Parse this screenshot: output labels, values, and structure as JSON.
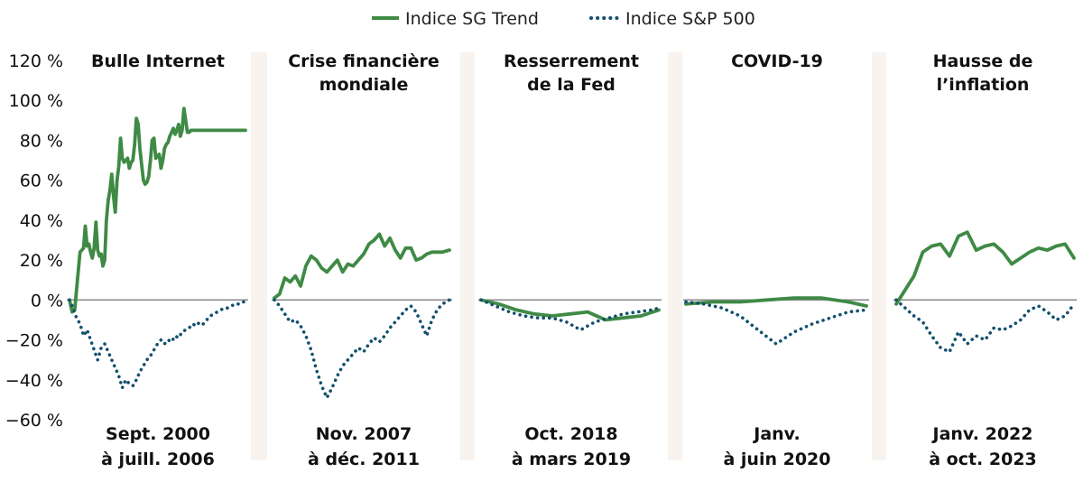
{
  "chart_data": {
    "type": "line",
    "yaxis": {
      "ylim": [
        -60,
        120
      ],
      "ticks": [
        120,
        100,
        80,
        60,
        40,
        20,
        0,
        -20,
        -40,
        -60
      ],
      "tick_labels": [
        "120 %",
        "100 %",
        "80 %",
        "60 %",
        "40 %",
        "20 %",
        "0 %",
        "−20 %",
        "−40 %",
        "−60 %"
      ]
    },
    "legend": {
      "placement": "top-center",
      "entries": [
        {
          "label": "Indice SG Trend",
          "color": "#3f8a45",
          "style": "solid"
        },
        {
          "label": "Indice S&P 500",
          "color": "#13506e",
          "style": "dotted"
        }
      ]
    },
    "panels": [
      {
        "title_lines": [
          "Bulle Internet"
        ],
        "period_lines": [
          "Sept. 2000",
          "à juill. 2006"
        ],
        "series": [
          {
            "name": "Indice SG Trend",
            "x": [
              0,
              1.5,
              3,
              4.5,
              6,
              7,
              8,
              9,
              10,
              11,
              12,
              13,
              14,
              15,
              16,
              17,
              18,
              19,
              20,
              21,
              22,
              23,
              24,
              25,
              26,
              27,
              28,
              29,
              30,
              31,
              32,
              33,
              34,
              35,
              36,
              37,
              38,
              39,
              40,
              41,
              42,
              43,
              44,
              45,
              46,
              47,
              48,
              49,
              50,
              51,
              52,
              53,
              54,
              55,
              56,
              57,
              58,
              59,
              60,
              61,
              62,
              63,
              64,
              65,
              66,
              67,
              68,
              69,
              70,
              71,
              72,
              73,
              74,
              75,
              76,
              77,
              78,
              79,
              80,
              81,
              82,
              83,
              84,
              85,
              86,
              87,
              88,
              89,
              90,
              91,
              92,
              93,
              94,
              95,
              96,
              97,
              98,
              99,
              100
            ],
            "values": [
              0,
              -6,
              -5,
              10,
              24,
              25,
              26,
              37,
              27,
              28,
              24,
              21,
              26,
              39,
              25,
              22,
              23,
              17,
              20,
              40,
              50,
              55,
              63,
              52,
              44,
              60,
              67,
              81,
              71,
              69,
              70,
              71,
              66,
              69,
              70,
              78,
              91,
              88,
              76,
              68,
              60,
              58,
              59,
              62,
              70,
              80,
              81,
              71,
              72,
              73,
              66,
              70,
              76,
              78,
              79,
              82,
              84,
              86,
              83,
              85,
              88,
              82,
              85,
              96,
              90,
              84,
              84,
              85,
              85,
              85,
              85,
              85,
              85,
              85,
              85,
              85,
              85,
              85,
              85,
              85,
              85,
              85,
              85,
              85,
              85,
              85,
              85,
              85,
              85,
              85,
              85,
              85,
              85,
              85,
              85,
              85,
              85,
              85,
              85
            ]
          },
          {
            "name": "Indice S&P 500",
            "x": [
              0,
              2,
              4,
              6,
              8,
              10,
              12,
              14,
              16,
              18,
              20,
              22,
              24,
              26,
              28,
              30,
              32,
              34,
              36,
              38,
              40,
              42,
              44,
              46,
              48,
              50,
              52,
              54,
              56,
              58,
              60,
              62,
              64,
              66,
              68,
              70,
              72,
              74,
              76,
              78,
              80,
              82,
              84,
              86,
              88,
              90,
              92,
              94,
              96,
              98,
              100
            ],
            "values": [
              0,
              -4,
              -9,
              -12,
              -18,
              -15,
              -20,
              -25,
              -30,
              -24,
              -22,
              -26,
              -30,
              -34,
              -38,
              -44,
              -40,
              -42,
              -43,
              -40,
              -36,
              -33,
              -30,
              -28,
              -25,
              -22,
              -20,
              -22,
              -20,
              -21,
              -18,
              -19,
              -16,
              -15,
              -14,
              -12,
              -13,
              -11,
              -12,
              -10,
              -8,
              -7,
              -6,
              -5,
              -4,
              -4,
              -3,
              -2,
              -2,
              -1,
              -1
            ]
          }
        ]
      },
      {
        "title_lines": [
          "Crise financière",
          "mondiale"
        ],
        "period_lines": [
          "Nov. 2007",
          "à déc. 2011"
        ],
        "series": [
          {
            "name": "Indice SG Trend",
            "x": [
              0,
              3,
              6,
              9,
              12,
              15,
              18,
              21,
              24,
              27,
              30,
              33,
              36,
              39,
              42,
              45,
              48,
              51,
              54,
              57,
              60,
              63,
              66,
              69,
              72,
              75,
              78,
              81,
              84,
              87,
              90,
              93,
              96,
              100
            ],
            "values": [
              1,
              3,
              11,
              9,
              12,
              7,
              17,
              22,
              20,
              16,
              14,
              17,
              20,
              14,
              18,
              17,
              20,
              23,
              28,
              30,
              33,
              27,
              31,
              25,
              21,
              26,
              26,
              20,
              21,
              23,
              24,
              24,
              24,
              25
            ]
          },
          {
            "name": "Indice S&P 500",
            "x": [
              0,
              3,
              6,
              9,
              12,
              15,
              18,
              21,
              24,
              27,
              30,
              33,
              36,
              39,
              42,
              45,
              48,
              51,
              54,
              57,
              60,
              63,
              66,
              69,
              72,
              75,
              78,
              81,
              84,
              87,
              90,
              93,
              96,
              100
            ],
            "values": [
              0,
              -3,
              -7,
              -11,
              -10,
              -13,
              -18,
              -25,
              -35,
              -43,
              -49,
              -44,
              -38,
              -33,
              -30,
              -27,
              -24,
              -26,
              -22,
              -19,
              -21,
              -18,
              -14,
              -11,
              -8,
              -5,
              -3,
              -6,
              -12,
              -18,
              -10,
              -5,
              -2,
              0
            ]
          }
        ]
      },
      {
        "title_lines": [
          "Resserrement",
          "de la Fed"
        ],
        "period_lines": [
          "Oct. 2018",
          "à mars 2019"
        ],
        "series": [
          {
            "name": "Indice SG Trend",
            "x": [
              0,
              10,
              20,
              30,
              40,
              50,
              60,
              70,
              80,
              90,
              100
            ],
            "values": [
              0,
              -2,
              -5,
              -7,
              -8,
              -7,
              -6,
              -10,
              -9,
              -8,
              -5
            ]
          },
          {
            "name": "Indice S&P 500",
            "x": [
              0,
              8,
              16,
              24,
              32,
              40,
              48,
              56,
              64,
              72,
              80,
              88,
              96,
              100
            ],
            "values": [
              0,
              -3,
              -6,
              -8,
              -9,
              -9,
              -11,
              -15,
              -11,
              -9,
              -7,
              -6,
              -5,
              -4
            ]
          }
        ]
      },
      {
        "title_lines": [
          "COVID-19"
        ],
        "period_lines": [
          "Janv.",
          "à juin 2020"
        ],
        "series": [
          {
            "name": "Indice SG Trend",
            "x": [
              0,
              15,
              30,
              45,
              60,
              75,
              90,
              100
            ],
            "values": [
              -2,
              -1,
              -1,
              0,
              1,
              1,
              -1,
              -3
            ]
          },
          {
            "name": "Indice S&P 500",
            "x": [
              0,
              10,
              20,
              30,
              40,
              50,
              60,
              70,
              80,
              90,
              100
            ],
            "values": [
              -1,
              -2,
              -4,
              -8,
              -15,
              -22,
              -16,
              -12,
              -9,
              -6,
              -5
            ]
          }
        ]
      },
      {
        "title_lines": [
          "Hausse de",
          "l’inflation"
        ],
        "period_lines": [
          "Janv. 2022",
          "à oct. 2023"
        ],
        "series": [
          {
            "name": "Indice SG Trend",
            "x": [
              0,
              5,
              10,
              15,
              20,
              25,
              30,
              35,
              40,
              45,
              50,
              55,
              60,
              65,
              70,
              75,
              80,
              85,
              90,
              95,
              100
            ],
            "values": [
              -2,
              5,
              12,
              24,
              27,
              28,
              22,
              32,
              34,
              25,
              27,
              28,
              24,
              18,
              21,
              24,
              26,
              25,
              27,
              28,
              21
            ]
          },
          {
            "name": "Indice S&P 500",
            "x": [
              0,
              5,
              10,
              15,
              20,
              25,
              30,
              35,
              40,
              45,
              50,
              55,
              60,
              65,
              70,
              75,
              80,
              85,
              90,
              95,
              100
            ],
            "values": [
              0,
              -4,
              -8,
              -11,
              -18,
              -24,
              -26,
              -16,
              -22,
              -18,
              -20,
              -14,
              -15,
              -13,
              -10,
              -5,
              -3,
              -6,
              -10,
              -8,
              -2
            ]
          }
        ]
      }
    ]
  }
}
